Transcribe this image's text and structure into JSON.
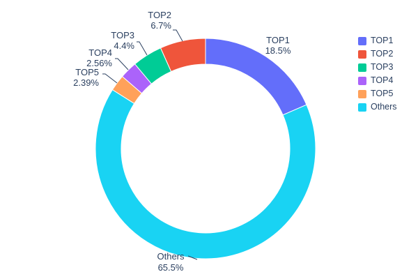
{
  "chart_data": {
    "type": "pie",
    "subtype": "donut",
    "hole": 0.77,
    "title": "",
    "legend_position": "right",
    "background": "#ffffff",
    "text_color": "#2a3f5f",
    "slices": [
      {
        "label": "TOP1",
        "value": 18.5,
        "display": "18.5%",
        "color": "#636EFA"
      },
      {
        "label": "TOP2",
        "value": 6.7,
        "display": "6.7%",
        "color": "#EF553B"
      },
      {
        "label": "TOP3",
        "value": 4.4,
        "display": "4.4%",
        "color": "#00CC96"
      },
      {
        "label": "TOP4",
        "value": 2.56,
        "display": "2.56%",
        "color": "#AB63FA"
      },
      {
        "label": "TOP5",
        "value": 2.39,
        "display": "2.39%",
        "color": "#FFA15A"
      },
      {
        "label": "Others",
        "value": 65.5,
        "display": "65.5%",
        "color": "#19D3F3"
      }
    ]
  }
}
